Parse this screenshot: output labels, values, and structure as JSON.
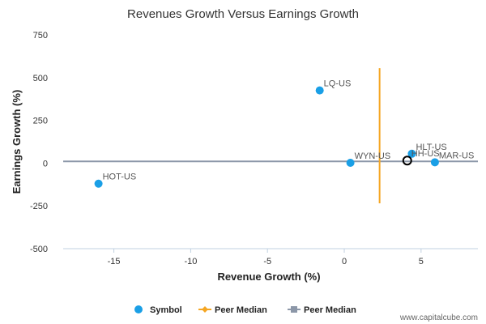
{
  "chart_data": {
    "type": "scatter",
    "title": "Revenues Growth Versus Earnings Growth",
    "xlabel": "Revenue Growth (%)",
    "ylabel": "Earnings Growth (%)",
    "xlim": [
      -18.3,
      8.7
    ],
    "ylim": [
      -500,
      750
    ],
    "xticks": [
      "-15",
      "-10",
      "-5",
      "0",
      "5"
    ],
    "xtick_values": [
      -15,
      -10,
      -5,
      0,
      5
    ],
    "yticks": [
      "750",
      "500",
      "250",
      "0",
      "-250",
      "-500"
    ],
    "ytick_values": [
      750,
      500,
      250,
      0,
      -250,
      -500
    ],
    "series": [
      {
        "name": "Symbol",
        "color": "#1a9fe6",
        "points": [
          {
            "label": "LQ-US",
            "x": -1.6,
            "y": 425
          },
          {
            "label": "HOT-US",
            "x": -16.0,
            "y": -120
          },
          {
            "label": "WYN-US",
            "x": 0.4,
            "y": 2
          },
          {
            "label": "HLT-US",
            "x": 4.4,
            "y": 55
          },
          {
            "label": "MAR-US",
            "x": 5.9,
            "y": 5
          }
        ]
      }
    ],
    "highlight": {
      "label": "HH-US",
      "x": 4.1,
      "y": 15
    },
    "peer_median_x": {
      "name": "Peer Median",
      "x": 2.3,
      "y_range": [
        -235,
        555
      ],
      "color": "#f5a623"
    },
    "peer_median_y": {
      "name": "Peer Median",
      "y": 10,
      "color": "#8c97a8"
    },
    "legend": {
      "placement": "bottom",
      "items": [
        {
          "label": "Symbol",
          "type": "dot",
          "color": "#1a9fe6"
        },
        {
          "label": "Peer Median",
          "type": "line-diamond",
          "color": "#f5a623"
        },
        {
          "label": "Peer Median",
          "type": "line-square",
          "color": "#8c97a8"
        }
      ]
    },
    "credit": "www.capitalcube.com",
    "grid": false
  }
}
